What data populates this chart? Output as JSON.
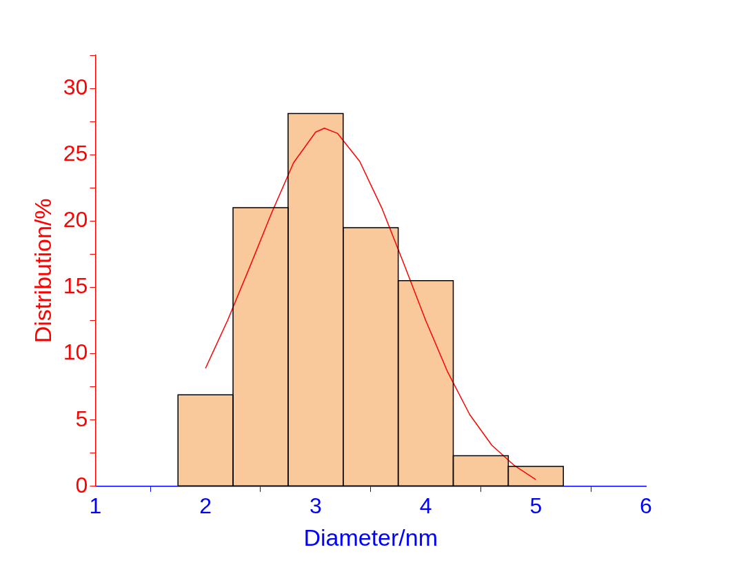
{
  "chart_data": {
    "type": "histogram",
    "xlabel": "Diameter/nm",
    "ylabel": "Distribution/%",
    "bins": [
      1.75,
      2.25,
      2.75,
      3.25,
      3.75,
      4.25,
      4.75,
      5.25
    ],
    "values": [
      6.9,
      21.0,
      28.1,
      19.5,
      15.5,
      2.3,
      1.5
    ],
    "color": "#f9c89b",
    "series": [
      {
        "type": "line",
        "color": "#ff0000",
        "x": [
          2,
          2.2,
          2.4,
          2.6,
          2.8,
          3.0,
          3.08,
          3.2,
          3.4,
          3.6,
          3.8,
          4.0,
          4.2,
          4.4,
          4.6,
          4.8,
          5.0
        ],
        "values": [
          8.9,
          12.5,
          16.5,
          20.6,
          24.4,
          26.7,
          27.0,
          26.6,
          24.5,
          21.0,
          16.8,
          12.5,
          8.6,
          5.4,
          3.1,
          1.6,
          0.5
        ]
      }
    ],
    "xlim": [
      1,
      6
    ],
    "xticks": [
      1,
      2,
      3,
      4,
      5,
      6
    ],
    "ylim": [
      0,
      32.5
    ],
    "yticks": [
      0,
      {
        "value": 2.5,
        "label": null
      },
      5,
      {
        "value": 7.5,
        "label": null
      },
      10,
      {
        "value": 12.5,
        "label": null
      },
      15,
      {
        "value": 17.5,
        "label": null
      },
      20,
      {
        "value": 22.5,
        "label": null
      },
      25,
      {
        "value": 27.5,
        "label": null
      },
      30,
      {
        "value": 32.5,
        "label": null
      }
    ],
    "grid": false,
    "legend": false,
    "marker": "none",
    "line_style": "solid"
  }
}
